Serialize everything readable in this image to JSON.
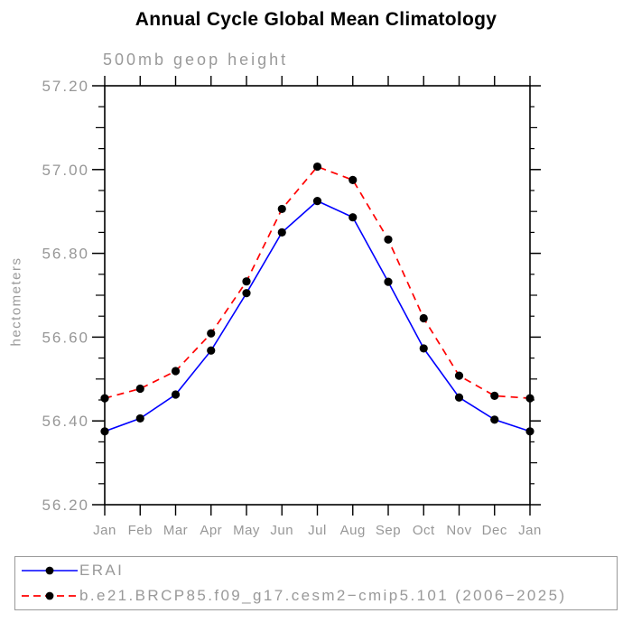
{
  "header": {
    "title": "Annual Cycle Global Mean Climatology",
    "subtitle": "500mb geop height"
  },
  "chart_data": {
    "type": "line",
    "title": "Annual Cycle Global Mean Climatology",
    "subtitle": "500mb geop height",
    "ylabel": "hectometers",
    "xlabel": "",
    "x_tick_labels": [
      "Jan",
      "Feb",
      "Mar",
      "Apr",
      "May",
      "Jun",
      "Jul",
      "Aug",
      "Sep",
      "Oct",
      "Nov",
      "Dec",
      "Jan"
    ],
    "ylim": [
      56.2,
      57.2
    ],
    "y_major_step": 0.2,
    "y_minor_step": 0.05,
    "y_tick_labels": [
      "56.20",
      "56.40",
      "56.60",
      "56.80",
      "57.00",
      "57.20"
    ],
    "grid": false,
    "frame": "boxed-ticks-outward",
    "legend_position": "bottom-left-box",
    "series": [
      {
        "name": "ERAI",
        "color": "#0000ff",
        "line_style": "solid",
        "marker": "filled-circle",
        "marker_color": "#000000",
        "values": [
          56.375,
          56.406,
          56.463,
          56.568,
          56.705,
          56.85,
          56.925,
          56.886,
          56.732,
          56.573,
          56.456,
          56.403,
          56.375
        ]
      },
      {
        "name": "b.e21.BRCP85.f09_g17.cesm2−cmip5.101 (2006−2025)",
        "color": "#ff0000",
        "line_style": "dashed",
        "marker": "filled-circle",
        "marker_color": "#000000",
        "values": [
          56.454,
          56.477,
          56.519,
          56.609,
          56.733,
          56.906,
          57.007,
          56.975,
          56.833,
          56.645,
          56.508,
          56.46,
          56.454
        ]
      }
    ]
  },
  "legend": {
    "items": [
      {
        "label": "ERAI"
      },
      {
        "label": "b.e21.BRCP85.f09_g17.cesm2−cmip5.101 (2006−2025)"
      }
    ]
  },
  "colors": {
    "axis": "#000000",
    "tick_label": "#979797",
    "title": "#000000",
    "subtitle": "#9a9a9a",
    "legend_border": "#999999",
    "legend_text": "#999999",
    "background": "#ffffff"
  }
}
